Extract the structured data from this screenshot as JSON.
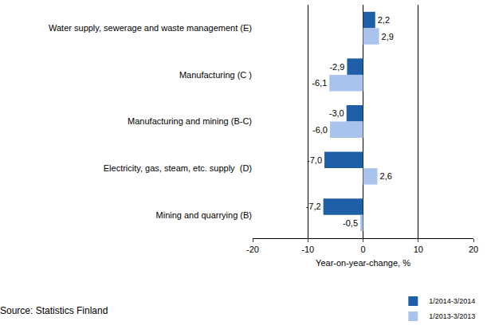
{
  "chart_data": {
    "type": "bar",
    "orientation": "horizontal",
    "categories": [
      "Water supply, sewerage and waste management (E)",
      "Manufacturing (C )",
      "Manufacturing and mining (B-C)",
      "Electricity, gas, steam, etc. supply  (D)",
      "Mining and quarrying (B)"
    ],
    "series": [
      {
        "name": "1/2014-3/2014",
        "color": "#1f5fa8",
        "values": [
          2.2,
          -2.9,
          -3.0,
          -7.0,
          -7.2
        ],
        "value_labels": [
          "2,2",
          "-2,9",
          "-3,0",
          "-7,0",
          "-7,2"
        ]
      },
      {
        "name": "1/2013-3/2013",
        "color": "#a9c4ec",
        "values": [
          2.9,
          -6.1,
          -6.0,
          2.6,
          -0.5
        ],
        "value_labels": [
          "2,9",
          "-6,1",
          "-6,0",
          "2,6",
          "-0,5"
        ]
      }
    ],
    "x_label": "Year-on-year-change, %",
    "xlim": [
      -20,
      20
    ],
    "xticks": [
      -20,
      -10,
      0,
      10,
      20
    ],
    "grid": true,
    "legend": "bottom right",
    "data_labels": true,
    "annotations": [
      "Source: Statistics Finland"
    ]
  }
}
